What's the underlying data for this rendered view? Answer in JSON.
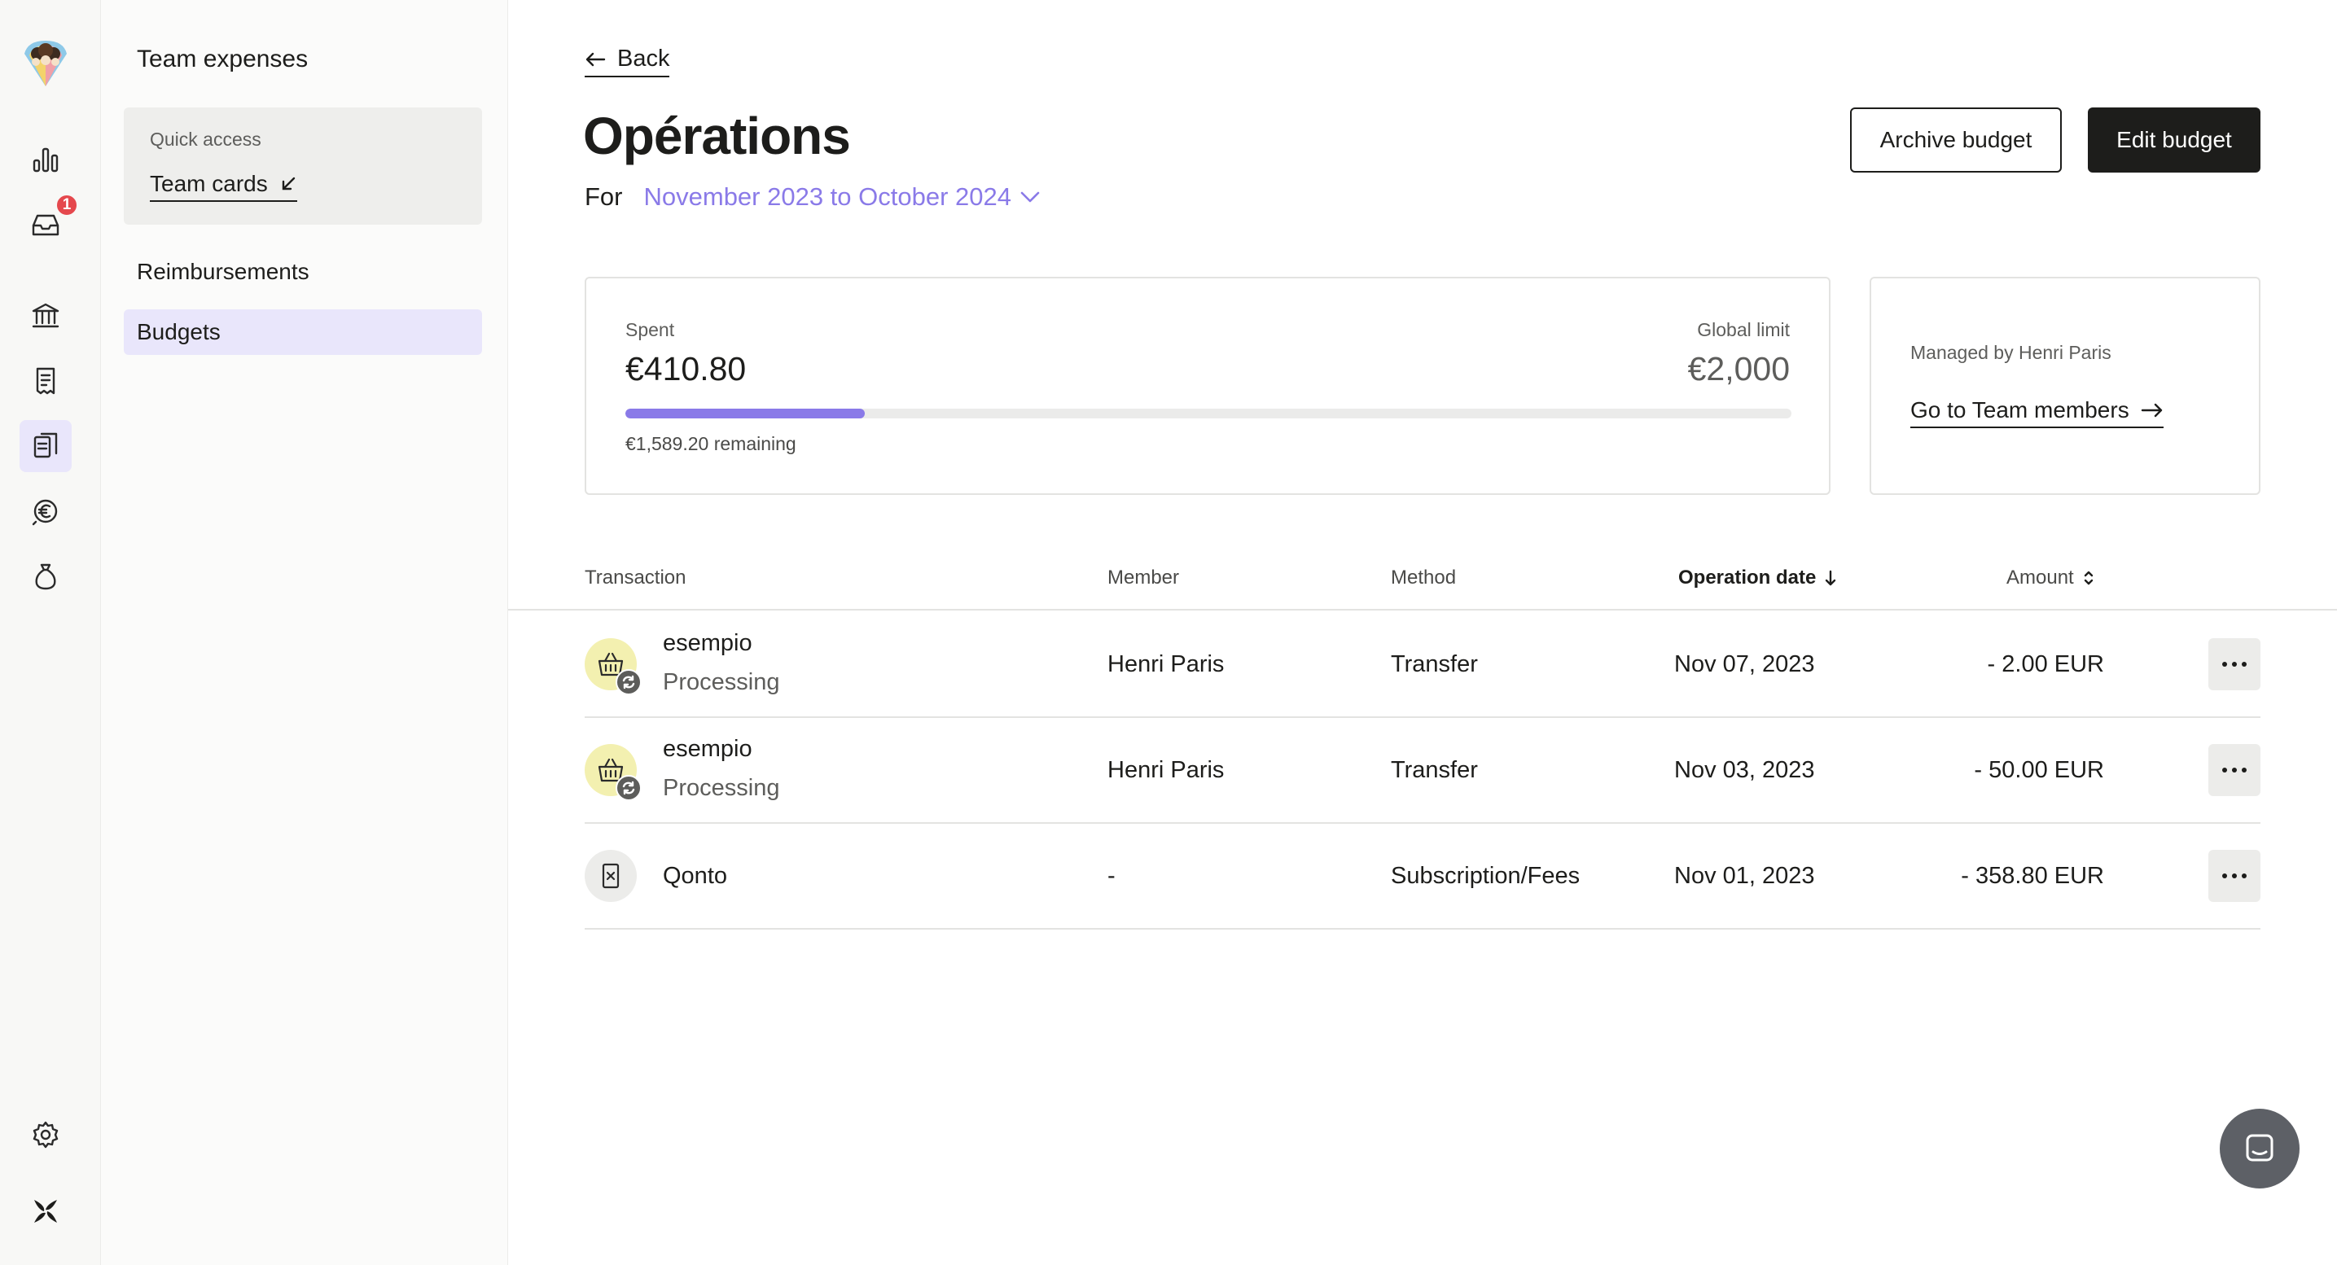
{
  "rail": {
    "items": [
      {
        "icon": "bar-chart-icon"
      },
      {
        "icon": "inbox-icon",
        "badge": "1"
      },
      {
        "icon": "bank-icon"
      },
      {
        "icon": "receipt-icon"
      },
      {
        "icon": "team-expenses-icon",
        "active": true
      },
      {
        "icon": "euro-icon"
      },
      {
        "icon": "money-bag-icon"
      }
    ],
    "bottom": [
      {
        "icon": "gear-icon"
      },
      {
        "icon": "brand-logo-icon"
      }
    ]
  },
  "subnav": {
    "title": "Team expenses",
    "quick_access": {
      "label": "Quick access",
      "link": "Team cards"
    },
    "items": [
      {
        "label": "Reimbursements",
        "active": false
      },
      {
        "label": "Budgets",
        "active": true
      }
    ]
  },
  "header": {
    "back_label": "Back",
    "title": "Opérations",
    "period_prefix": "For",
    "period_value": "November 2023 to October 2024",
    "archive_label": "Archive budget",
    "edit_label": "Edit budget"
  },
  "summary": {
    "spent_label": "Spent",
    "spent_value": "€410.80",
    "limit_label": "Global limit",
    "limit_value": "€2,000",
    "progress_percent": 20.54,
    "remaining": "€1,589.20 remaining",
    "managed_by": "Managed by Henri Paris",
    "team_link": "Go to Team members"
  },
  "table": {
    "columns": [
      "Transaction",
      "Member",
      "Method",
      "Operation date",
      "Amount"
    ],
    "rows": [
      {
        "name": "esempio",
        "status": "Processing",
        "icon": "basket-icon",
        "member": "Henri Paris",
        "method": "Transfer",
        "date": "Nov 07, 2023",
        "amount": "- 2.00 EUR"
      },
      {
        "name": "esempio",
        "status": "Processing",
        "icon": "basket-icon",
        "member": "Henri Paris",
        "method": "Transfer",
        "date": "Nov 03, 2023",
        "amount": "- 50.00 EUR"
      },
      {
        "name": "Qonto",
        "status": "",
        "icon": "fees-document-icon",
        "member": "-",
        "method": "Subscription/Fees",
        "date": "Nov 01, 2023",
        "amount": "- 358.80 EUR"
      }
    ]
  },
  "colors": {
    "accent": "#8a7ae8",
    "active_bg": "#e9e6fb",
    "dark": "#1d1d1b",
    "badge": "#e5484d"
  }
}
